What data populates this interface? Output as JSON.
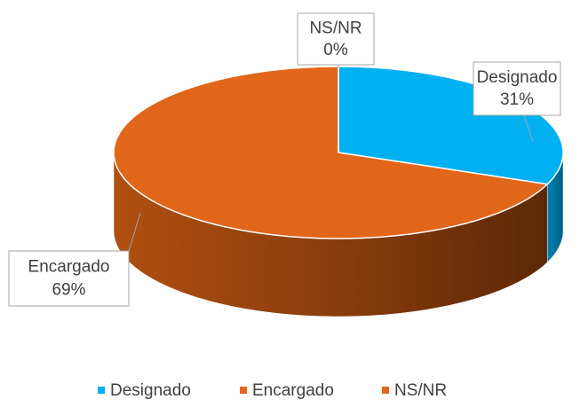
{
  "chart_data": {
    "type": "pie3d",
    "categories": [
      "Designado",
      "Encargado",
      "NS/NR"
    ],
    "values": [
      31,
      69,
      0
    ],
    "value_labels": [
      "31%",
      "69%",
      "0%"
    ],
    "colors": [
      "#00b0f0",
      "#e2661a",
      "#e2661a"
    ],
    "legend": "bottom"
  }
}
